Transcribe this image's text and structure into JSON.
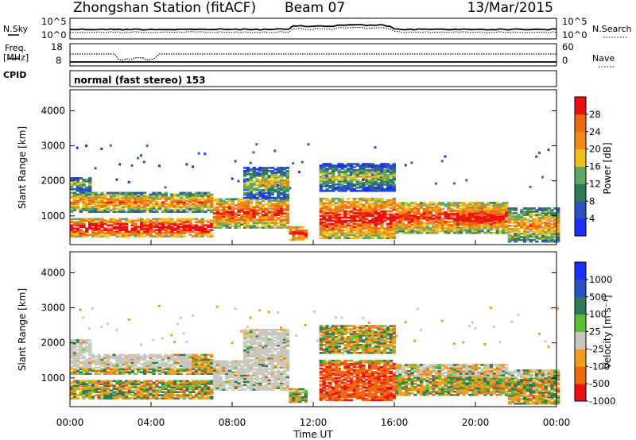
{
  "header": {
    "title": "Zhongshan Station (fitACF)",
    "beam": "Beam 07",
    "date": "13/Mar/2015"
  },
  "top_panels": {
    "nsky_label": "N.Sky",
    "nsearch_label": "N.Search",
    "freq_label": "Freq.",
    "freq_unit": "[MHz]",
    "nave_label": "Nave",
    "cpid_label": "CPID",
    "cpid_value": "normal (fast stereo) 153",
    "noise_ticks_left": [
      "10^5",
      "10^0"
    ],
    "noise_ticks_right": [
      "10^5",
      "10^0"
    ],
    "freq_ticks": [
      "18",
      "8"
    ],
    "nave_ticks": [
      "60",
      "0"
    ]
  },
  "chart_data": [
    {
      "type": "heatmap",
      "name": "Power",
      "ylabel": "Slant Range [km]",
      "xlabel": "Time UT",
      "xlim": [
        0,
        24
      ],
      "ylim": [
        180,
        4600
      ],
      "xticks": [
        "00:00",
        "04:00",
        "08:00",
        "12:00",
        "16:00",
        "20:00",
        "00:00"
      ],
      "yticks": [
        1000,
        2000,
        3000,
        4000
      ],
      "colorbar_label": "Power [dB]",
      "colorbar_ticks": [
        "4",
        "8",
        "12",
        "16",
        "20",
        "24",
        "28"
      ],
      "colorbar_colors": [
        "#1c2dff",
        "#2b52c4",
        "#317a56",
        "#60a868",
        "#eec21b",
        "#f08a1a",
        "#f06810",
        "#ee1010"
      ]
    },
    {
      "type": "heatmap",
      "name": "Velocity",
      "ylabel": "Slant Range [km]",
      "xlabel": "Time UT",
      "xlim": [
        0,
        24
      ],
      "ylim": [
        180,
        4600
      ],
      "xticks": [
        "00:00",
        "04:00",
        "08:00",
        "12:00",
        "16:00",
        "20:00",
        "00:00"
      ],
      "yticks": [
        1000,
        2000,
        3000,
        4000
      ],
      "colorbar_label": "Velocity [m s⁻¹]",
      "colorbar_ticks": [
        "1000",
        "500",
        "100",
        "25",
        "-25",
        "-100",
        "-500",
        "-1000"
      ],
      "colorbar_colors": [
        "#1c2dff",
        "#2b52c4",
        "#317a56",
        "#58c234",
        "#c8c8c0",
        "#f0a020",
        "#f06810",
        "#ee1010"
      ]
    }
  ],
  "colors": {
    "ground_scatter": "#c8c8c0"
  }
}
